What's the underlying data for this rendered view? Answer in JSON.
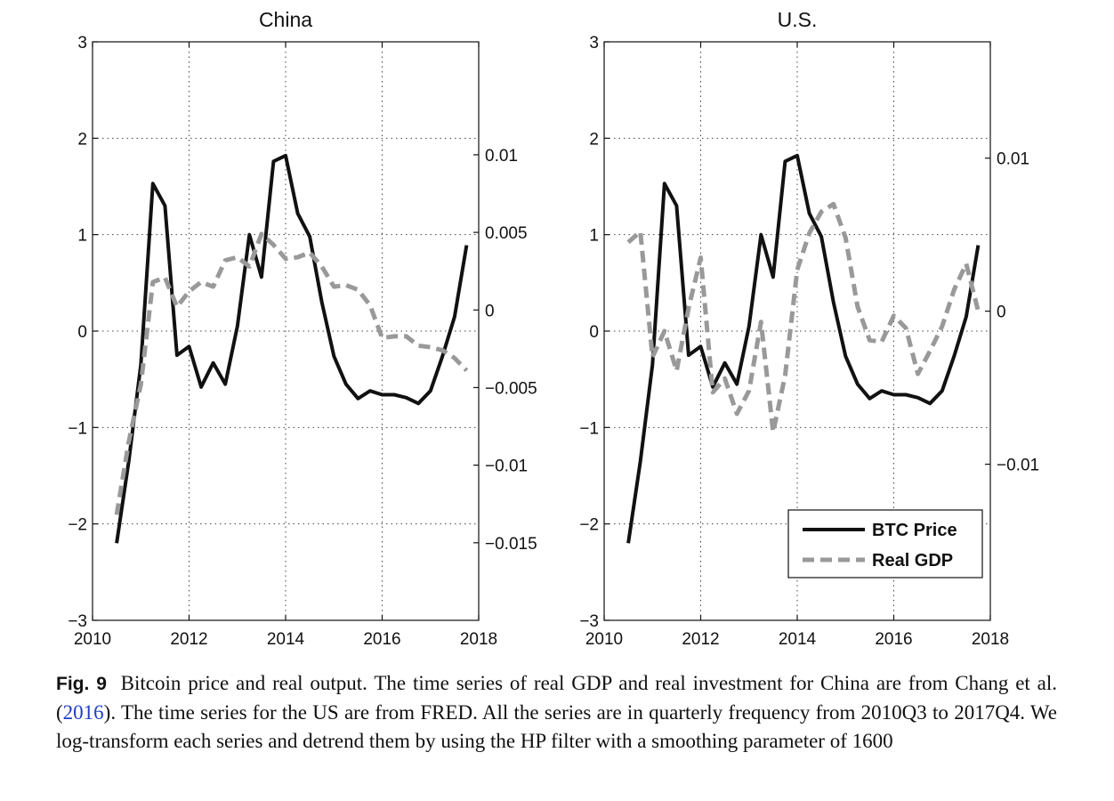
{
  "chart_data": [
    {
      "type": "line",
      "title": "China",
      "xlabel": "",
      "ylabel": "",
      "xlim": [
        2010,
        2018
      ],
      "xticks": [
        "2010",
        "2012",
        "2014",
        "2016",
        "2018"
      ],
      "ylim_left": [
        -3,
        3
      ],
      "yticks_left": [
        "3",
        "2",
        "1",
        "0",
        "−1",
        "−2",
        "−3"
      ],
      "ylim_right": [
        -0.02,
        0.01728
      ],
      "yticks_right": [
        "0.01",
        "0.005",
        "0",
        "−0.005",
        "−0.01",
        "−0.015"
      ],
      "grid": true,
      "legend": null,
      "x": [
        2010.5,
        2010.75,
        2011,
        2011.25,
        2011.5,
        2011.75,
        2012,
        2012.25,
        2012.5,
        2012.75,
        2013,
        2013.25,
        2013.5,
        2013.75,
        2014,
        2014.25,
        2014.5,
        2014.75,
        2015,
        2015.25,
        2015.5,
        2015.75,
        2016,
        2016.25,
        2016.5,
        2016.75,
        2017,
        2017.25,
        2017.5,
        2017.75
      ],
      "series": [
        {
          "name": "BTC Price",
          "axis": "left",
          "style": "solid",
          "color": "#111111",
          "values": [
            -2.2,
            -1.35,
            -0.35,
            1.53,
            1.3,
            -0.25,
            -0.16,
            -0.58,
            -0.33,
            -0.55,
            0.05,
            1.0,
            0.56,
            1.76,
            1.82,
            1.22,
            0.98,
            0.3,
            -0.26,
            -0.55,
            -0.7,
            -0.62,
            -0.66,
            -0.66,
            -0.69,
            -0.75,
            -0.62,
            -0.26,
            0.15,
            0.89
          ]
        },
        {
          "name": "Real GDP",
          "axis": "right",
          "style": "dashed",
          "color": "#999999",
          "values": [
            -0.0132,
            -0.0085,
            -0.0048,
            0.0018,
            0.0021,
            0.0002,
            0.0012,
            0.0018,
            0.0015,
            0.0032,
            0.0034,
            0.0028,
            0.0049,
            0.0042,
            0.0033,
            0.0034,
            0.0037,
            0.0028,
            0.0015,
            0.0016,
            0.0013,
            0.0003,
            -0.0018,
            -0.0017,
            -0.0017,
            -0.0023,
            -0.0024,
            -0.0026,
            -0.0031,
            -0.0039
          ]
        }
      ]
    },
    {
      "type": "line",
      "title": "U.S.",
      "xlabel": "",
      "ylabel": "",
      "xlim": [
        2010,
        2018
      ],
      "xticks": [
        "2010",
        "2012",
        "2014",
        "2016",
        "2018"
      ],
      "ylim_left": [
        -3,
        3
      ],
      "yticks_left": [
        "3",
        "2",
        "1",
        "0",
        "−1",
        "−2",
        "−3"
      ],
      "ylim_right": [
        -0.0202,
        0.0176
      ],
      "yticks_right": [
        "0.01",
        "0",
        "−0.01"
      ],
      "grid": true,
      "legend": "bottom-right",
      "x": [
        2010.5,
        2010.75,
        2011,
        2011.25,
        2011.5,
        2011.75,
        2012,
        2012.25,
        2012.5,
        2012.75,
        2013,
        2013.25,
        2013.5,
        2013.75,
        2014,
        2014.25,
        2014.5,
        2014.75,
        2015,
        2015.25,
        2015.5,
        2015.75,
        2016,
        2016.25,
        2016.5,
        2016.75,
        2017,
        2017.25,
        2017.5,
        2017.75
      ],
      "series": [
        {
          "name": "BTC Price",
          "axis": "left",
          "style": "solid",
          "color": "#111111",
          "values": [
            -2.2,
            -1.35,
            -0.35,
            1.53,
            1.3,
            -0.25,
            -0.16,
            -0.58,
            -0.33,
            -0.55,
            0.05,
            1.0,
            0.56,
            1.76,
            1.82,
            1.22,
            0.98,
            0.3,
            -0.26,
            -0.55,
            -0.7,
            -0.62,
            -0.66,
            -0.66,
            -0.69,
            -0.75,
            -0.62,
            -0.26,
            0.15,
            0.89
          ]
        },
        {
          "name": "Real GDP",
          "axis": "right",
          "style": "dashed",
          "color": "#999999",
          "values": [
            0.0045,
            0.0052,
            -0.003,
            -0.0013,
            -0.0039,
            0.0002,
            0.0035,
            -0.0053,
            -0.0044,
            -0.0067,
            -0.0052,
            -0.0007,
            -0.0079,
            -0.0042,
            0.0027,
            0.0051,
            0.0065,
            0.007,
            0.0048,
            0.0003,
            -0.0019,
            -0.002,
            -0.0003,
            -0.0011,
            -0.0041,
            -0.0026,
            -0.001,
            0.0014,
            0.0031,
            0.0
          ]
        }
      ]
    }
  ],
  "legend": {
    "btc_label": "BTC Price",
    "gdp_label": "Real GDP"
  },
  "caption": {
    "label": "Fig. 9",
    "text_before_link": "Bitcoin price and real output. The time series of real GDP and real investment for China are from Chang et al. (",
    "link_text": "2016",
    "text_after_link": "). The time series for the US are from FRED. All the series are in quarterly frequency from 2010Q3 to 2017Q4. We log-transform each series and detrend them by using the HP filter with a smoothing parameter of 1600"
  }
}
